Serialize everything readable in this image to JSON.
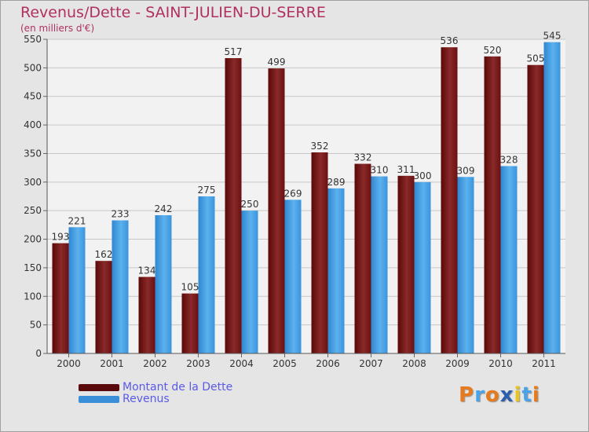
{
  "chart_data": {
    "type": "bar",
    "title": "Revenus/Dette - SAINT-JULIEN-DU-SERRE",
    "subtitle": "(en milliers d'€)",
    "categories": [
      "2000",
      "2001",
      "2002",
      "2003",
      "2004",
      "2005",
      "2006",
      "2007",
      "2008",
      "2009",
      "2010",
      "2011"
    ],
    "series": [
      {
        "name": "Montant de la Dette",
        "color": "#7a1a1a",
        "values": [
          193,
          162,
          134,
          105,
          517,
          499,
          352,
          332,
          311,
          536,
          520,
          505
        ]
      },
      {
        "name": "Revenus",
        "color": "#4aa3e6",
        "values": [
          221,
          233,
          242,
          275,
          250,
          269,
          289,
          310,
          300,
          309,
          328,
          545
        ]
      }
    ],
    "ylim": [
      0,
      550
    ],
    "yticks": [
      0,
      50,
      100,
      150,
      200,
      250,
      300,
      350,
      400,
      450,
      500,
      550
    ],
    "grid": true,
    "legend_position": "bottom-left"
  },
  "brand": {
    "letters": [
      "P",
      "r",
      "o",
      "x",
      "i",
      "t",
      "i"
    ],
    "colors": [
      "#e87a1e",
      "#4aa3e6",
      "#e87a1e",
      "#2a5fae",
      "#e8c51e",
      "#4aa3e6",
      "#e87a1e"
    ]
  }
}
